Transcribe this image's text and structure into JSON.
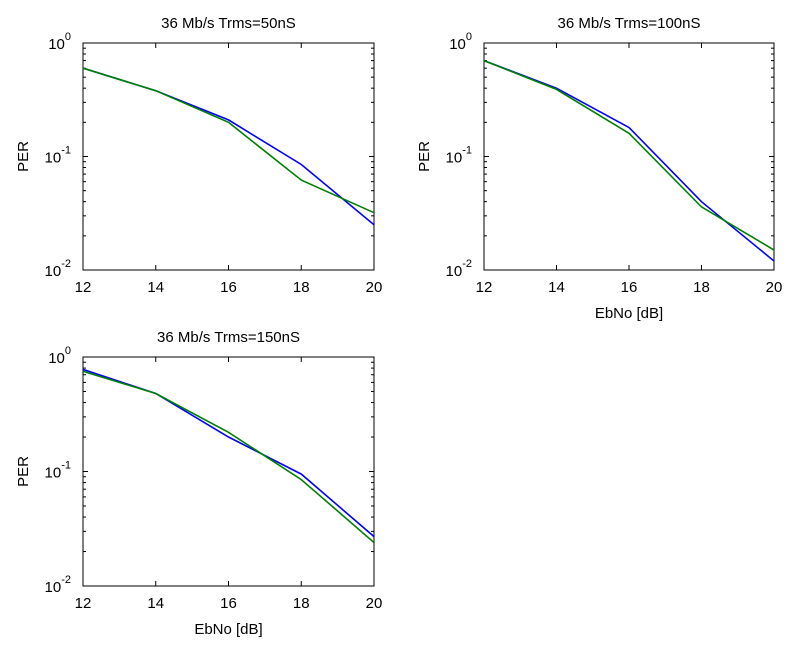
{
  "chart_data": [
    {
      "type": "line",
      "title": "36 Mb/s Trms=50nS",
      "xlabel": "",
      "ylabel": "PER",
      "x": [
        12,
        14,
        16,
        18,
        20
      ],
      "xlim": [
        12,
        20
      ],
      "ylim": [
        0.01,
        1
      ],
      "yscale": "log",
      "xticks": [
        "12",
        "14",
        "16",
        "18",
        "20"
      ],
      "yticks": [
        {
          "base": "10",
          "exp": "0"
        },
        {
          "base": "10",
          "exp": "-1"
        },
        {
          "base": "10",
          "exp": "-2"
        }
      ],
      "grid": false,
      "series": [
        {
          "color": "#0000ff",
          "values": [
            0.6,
            0.38,
            0.21,
            0.085,
            0.025
          ]
        },
        {
          "color": "#008000",
          "values": [
            0.6,
            0.38,
            0.2,
            0.062,
            0.032
          ]
        }
      ]
    },
    {
      "type": "line",
      "title": "36 Mb/s Trms=100nS",
      "xlabel": "EbNo [dB]",
      "ylabel": "PER",
      "x": [
        12,
        14,
        16,
        18,
        20
      ],
      "xlim": [
        12,
        20
      ],
      "ylim": [
        0.01,
        1
      ],
      "yscale": "log",
      "xticks": [
        "12",
        "14",
        "16",
        "18",
        "20"
      ],
      "yticks": [
        {
          "base": "10",
          "exp": "0"
        },
        {
          "base": "10",
          "exp": "-1"
        },
        {
          "base": "10",
          "exp": "-2"
        }
      ],
      "grid": false,
      "series": [
        {
          "color": "#0000ff",
          "values": [
            0.7,
            0.4,
            0.18,
            0.04,
            0.012
          ]
        },
        {
          "color": "#008000",
          "values": [
            0.7,
            0.39,
            0.16,
            0.036,
            0.015
          ]
        }
      ]
    },
    {
      "type": "line",
      "title": "36 Mb/s Trms=150nS",
      "xlabel": "EbNo [dB]",
      "ylabel": "PER",
      "x": [
        12,
        14,
        16,
        18,
        20
      ],
      "xlim": [
        12,
        20
      ],
      "ylim": [
        0.01,
        1
      ],
      "yscale": "log",
      "xticks": [
        "12",
        "14",
        "16",
        "18",
        "20"
      ],
      "yticks": [
        {
          "base": "10",
          "exp": "0"
        },
        {
          "base": "10",
          "exp": "-1"
        },
        {
          "base": "10",
          "exp": "-2"
        }
      ],
      "grid": false,
      "series": [
        {
          "color": "#0000ff",
          "values": [
            0.78,
            0.48,
            0.2,
            0.095,
            0.027
          ]
        },
        {
          "color": "#008000",
          "values": [
            0.75,
            0.48,
            0.22,
            0.085,
            0.024
          ]
        }
      ]
    }
  ]
}
